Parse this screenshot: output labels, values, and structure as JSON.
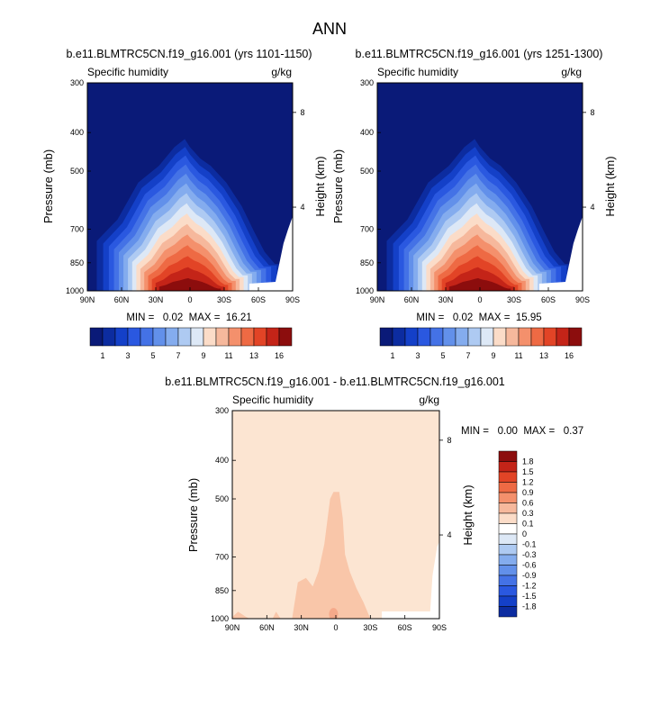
{
  "figure_title": "ANN",
  "chart_data": [
    {
      "type": "heatmap",
      "title": "b.e11.BLMTRC5CN.f19_g16.001 (yrs 1101-1150)",
      "variable": "Specific humidity",
      "units": "g/kg",
      "xlabel": "",
      "ylabel": "Pressure (mb)",
      "ylabel_right": "Height (km)",
      "x_ticks": [
        "90N",
        "60N",
        "30N",
        "0",
        "30S",
        "60S",
        "90S"
      ],
      "y_ticks": [
        "300",
        "400",
        "500",
        "700",
        "850",
        "1000"
      ],
      "y_ticks_right": [
        "8",
        "4"
      ],
      "y_scale": "log",
      "x_range": [
        "90N",
        "90S"
      ],
      "y_range": [
        300,
        1000
      ],
      "stats": "MIN =   0.02  MAX =  16.21",
      "min": 0.02,
      "max": 16.21,
      "colorbar_labels": [
        "1",
        "3",
        "5",
        "7",
        "9",
        "11",
        "13",
        "16"
      ],
      "levels": [
        0.5,
        1,
        2,
        3,
        4,
        5,
        6,
        7,
        8,
        9,
        10,
        11,
        12,
        13,
        14,
        16
      ],
      "field": [
        {
          "lat": 90,
          "top_p": 740
        },
        {
          "lat": 70,
          "top_p": 650
        },
        {
          "lat": 50,
          "top_p": 520
        },
        {
          "lat": 30,
          "top_p": 470
        },
        {
          "lat": 15,
          "top_p": 420
        },
        {
          "lat": 5,
          "top_p": 400
        },
        {
          "lat": 0,
          "top_p": 420
        },
        {
          "lat": -10,
          "top_p": 450
        },
        {
          "lat": -20,
          "top_p": 470
        },
        {
          "lat": -35,
          "top_p": 520
        },
        {
          "lat": -50,
          "top_p": 600
        },
        {
          "lat": -62,
          "top_p": 700
        },
        {
          "lat": -72,
          "top_p": 790
        },
        {
          "lat": -82,
          "top_p": 850
        },
        {
          "lat": -90,
          "top_p": 850
        }
      ],
      "peak_value": 16.21
    },
    {
      "type": "heatmap",
      "title": "b.e11.BLMTRC5CN.f19_g16.001 (yrs 1251-1300)",
      "variable": "Specific humidity",
      "units": "g/kg",
      "xlabel": "",
      "ylabel": "Pressure (mb)",
      "ylabel_right": "Height (km)",
      "x_ticks": [
        "90N",
        "60N",
        "30N",
        "0",
        "30S",
        "60S",
        "90S"
      ],
      "y_ticks": [
        "300",
        "400",
        "500",
        "700",
        "850",
        "1000"
      ],
      "y_ticks_right": [
        "8",
        "4"
      ],
      "y_scale": "log",
      "x_range": [
        "90N",
        "90S"
      ],
      "y_range": [
        300,
        1000
      ],
      "stats": "MIN =   0.02  MAX =  15.95",
      "min": 0.02,
      "max": 15.95,
      "colorbar_labels": [
        "1",
        "3",
        "5",
        "7",
        "9",
        "11",
        "13",
        "16"
      ],
      "levels": [
        0.5,
        1,
        2,
        3,
        4,
        5,
        6,
        7,
        8,
        9,
        10,
        11,
        12,
        13,
        14,
        16
      ],
      "field": [
        {
          "lat": 90,
          "top_p": 740
        },
        {
          "lat": 70,
          "top_p": 650
        },
        {
          "lat": 50,
          "top_p": 520
        },
        {
          "lat": 30,
          "top_p": 470
        },
        {
          "lat": 15,
          "top_p": 420
        },
        {
          "lat": 5,
          "top_p": 400
        },
        {
          "lat": 0,
          "top_p": 420
        },
        {
          "lat": -10,
          "top_p": 450
        },
        {
          "lat": -20,
          "top_p": 470
        },
        {
          "lat": -35,
          "top_p": 520
        },
        {
          "lat": -50,
          "top_p": 600
        },
        {
          "lat": -62,
          "top_p": 700
        },
        {
          "lat": -72,
          "top_p": 790
        },
        {
          "lat": -82,
          "top_p": 850
        },
        {
          "lat": -90,
          "top_p": 850
        }
      ],
      "peak_value": 15.95
    },
    {
      "type": "heatmap",
      "title": "b.e11.BLMTRC5CN.f19_g16.001 - b.e11.BLMTRC5CN.f19_g16.001",
      "variable": "Specific humidity",
      "units": "g/kg",
      "xlabel": "",
      "ylabel": "Pressure (mb)",
      "ylabel_right": "Height (km)",
      "x_ticks": [
        "90N",
        "60N",
        "30N",
        "0",
        "30S",
        "60S",
        "90S"
      ],
      "y_ticks": [
        "300",
        "400",
        "500",
        "700",
        "850",
        "1000"
      ],
      "y_ticks_right": [
        "8",
        "4"
      ],
      "y_scale": "log",
      "x_range": [
        "90N",
        "90S"
      ],
      "y_range": [
        300,
        1000
      ],
      "stats": "MIN =   0.00  MAX =   0.37",
      "min": 0.0,
      "max": 0.37,
      "colorbar_labels": [
        "1.8",
        "1.5",
        "1.2",
        "0.9",
        "0.6",
        "0.3",
        "0.1",
        "0",
        "-0.1",
        "-0.3",
        "-0.6",
        "-0.9",
        "-1.2",
        "-1.5",
        "-1.8"
      ],
      "background_value": 0.05,
      "anomaly_value": 0.2,
      "anomaly_region": [
        {
          "lat": 90,
          "top_p": 990
        },
        {
          "lat": 85,
          "top_p": 960
        },
        {
          "lat": 78,
          "top_p": 990
        },
        {
          "lat": 75,
          "top_p": 1000
        },
        {
          "lat": 55,
          "top_p": 1000
        },
        {
          "lat": 52,
          "top_p": 960
        },
        {
          "lat": 48,
          "top_p": 1000
        },
        {
          "lat": 38,
          "top_p": 1000
        },
        {
          "lat": 33,
          "top_p": 810
        },
        {
          "lat": 26,
          "top_p": 790
        },
        {
          "lat": 20,
          "top_p": 830
        },
        {
          "lat": 15,
          "top_p": 760
        },
        {
          "lat": 10,
          "top_p": 650
        },
        {
          "lat": 5,
          "top_p": 500
        },
        {
          "lat": 2,
          "top_p": 480
        },
        {
          "lat": -3,
          "top_p": 480
        },
        {
          "lat": -6,
          "top_p": 560
        },
        {
          "lat": -8,
          "top_p": 690
        },
        {
          "lat": -12,
          "top_p": 760
        },
        {
          "lat": -18,
          "top_p": 840
        },
        {
          "lat": -24,
          "top_p": 910
        },
        {
          "lat": -30,
          "top_p": 1000
        }
      ]
    }
  ]
}
